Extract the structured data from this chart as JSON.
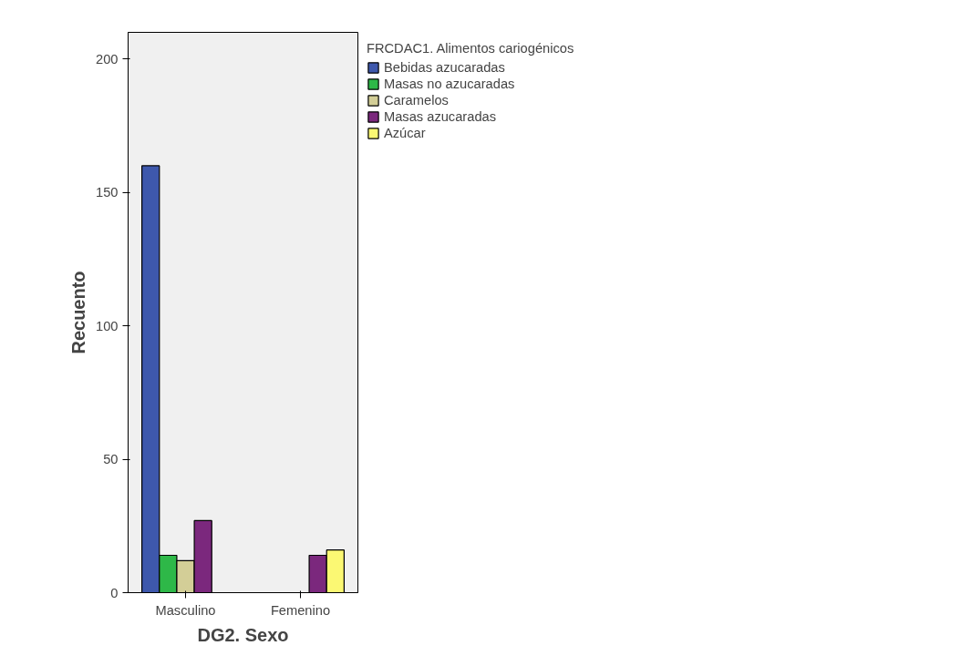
{
  "chart_data": {
    "type": "bar",
    "xlabel": "DG2. Sexo",
    "ylabel": "Recuento",
    "legend_title": "FRCDAC1. Alimentos cariogénicos",
    "categories": [
      "Masculino",
      "Femenino"
    ],
    "series": [
      {
        "name": "Bebidas azucaradas",
        "color": "#3e58ac",
        "values": [
          160,
          null
        ]
      },
      {
        "name": "Masas no azucaradas",
        "color": "#2eb848",
        "values": [
          14,
          null
        ]
      },
      {
        "name": "Caramelos",
        "color": "#d3ce97",
        "values": [
          12,
          null
        ]
      },
      {
        "name": "Masas azucaradas",
        "color": "#7b287d",
        "values": [
          27,
          14
        ]
      },
      {
        "name": "Azúcar",
        "color": "#fbf873",
        "values": [
          null,
          16
        ]
      }
    ],
    "ylim": [
      0,
      210
    ],
    "yticks": [
      0,
      50,
      100,
      150,
      200
    ],
    "grid": false,
    "legend": "right"
  }
}
